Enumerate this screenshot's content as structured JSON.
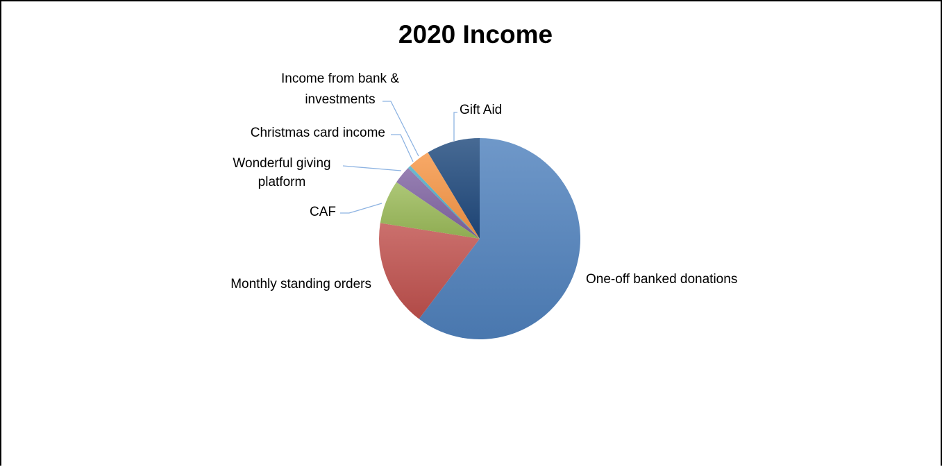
{
  "chart_data": {
    "type": "pie",
    "title": "2020 Income",
    "start_angle_deg": 0,
    "direction": "clockwise",
    "slices": [
      {
        "label": "One-off banked donations",
        "value": 60.3,
        "color": "#4f81bd"
      },
      {
        "label": "Monthly standing orders",
        "value": 17.2,
        "color": "#c0504d"
      },
      {
        "label": "CAF",
        "value": 7.0,
        "color": "#9bbb59"
      },
      {
        "label": "Wonderful giving platform",
        "value": 2.9,
        "color": "#8064a2"
      },
      {
        "label": "Christmas card income",
        "value": 0.5,
        "color": "#4bacc6"
      },
      {
        "label": "Income from bank & investments",
        "value": 3.5,
        "color": "#f79646"
      },
      {
        "label": "Gift Aid",
        "value": 8.6,
        "color": "#1f497d"
      }
    ],
    "legend": "none",
    "label_style": "outside with leader lines"
  }
}
